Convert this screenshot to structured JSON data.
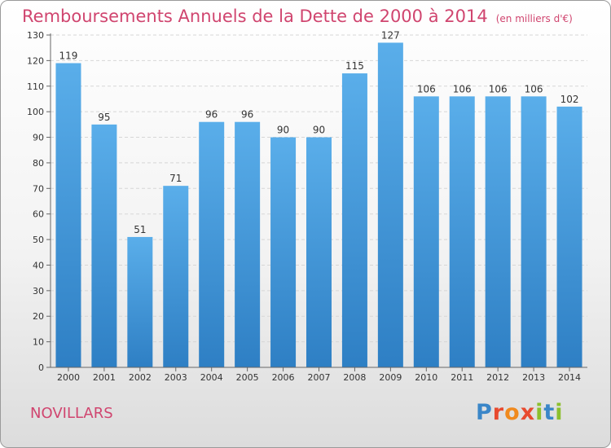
{
  "header": {
    "title": "Remboursements Annuels de la Dette de 2000 à 2014",
    "unit": "(en milliers d'€)"
  },
  "place": "NOVILLARS",
  "logo": {
    "text": "Proxiti"
  },
  "colors": {
    "bar_light": "#5aaeea",
    "bar_dark": "#2e7fc4",
    "title": "#d0456f"
  },
  "chart_data": {
    "type": "bar",
    "title": "Remboursements Annuels de la Dette de 2000 à 2014",
    "subtitle": "(en milliers d'€)",
    "xlabel": "",
    "ylabel": "",
    "categories": [
      "2000",
      "2001",
      "2002",
      "2003",
      "2004",
      "2005",
      "2006",
      "2007",
      "2008",
      "2009",
      "2010",
      "2011",
      "2012",
      "2013",
      "2014"
    ],
    "values": [
      119,
      95,
      51,
      71,
      96,
      96,
      90,
      90,
      115,
      127,
      106,
      106,
      106,
      106,
      102
    ],
    "ylim": [
      0,
      130
    ],
    "yticks": [
      0,
      10,
      20,
      30,
      40,
      50,
      60,
      70,
      80,
      90,
      100,
      110,
      120,
      130
    ],
    "grid": true,
    "legend": "none"
  }
}
